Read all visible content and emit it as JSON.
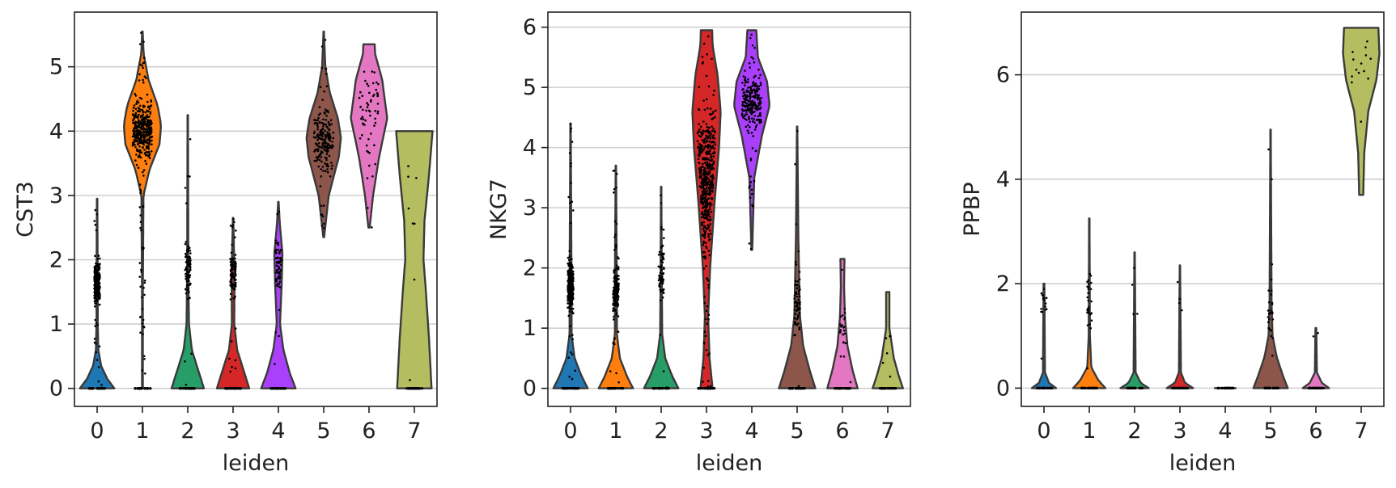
{
  "chart_data": [
    {
      "type": "violin",
      "xlabel": "leiden",
      "ylabel": "CST3",
      "categories": [
        "0",
        "1",
        "2",
        "3",
        "4",
        "5",
        "6",
        "7"
      ],
      "yticks": [
        "0",
        "1",
        "2",
        "3",
        "4",
        "5"
      ],
      "ytick_values": [
        0,
        1,
        2,
        3,
        4,
        5
      ],
      "ylim": [
        -0.28,
        5.85
      ],
      "grid": true,
      "colors": [
        "#1f77b4",
        "#ff7f0e",
        "#279e68",
        "#d62728",
        "#aa40fc",
        "#8c564b",
        "#e377c2",
        "#b5bd61"
      ],
      "violins": [
        {
          "min": 0,
          "max": 2.95,
          "median": 0,
          "points_center": 1.65,
          "points_spread": 0.25,
          "n_points": 260,
          "profile": [
            [
              0,
              0.85
            ],
            [
              0.15,
              0.5
            ],
            [
              0.35,
              0.2
            ],
            [
              0.6,
              0.06
            ],
            [
              1.0,
              0.03
            ],
            [
              1.6,
              0.03
            ],
            [
              2.95,
              0.01
            ]
          ]
        },
        {
          "min": 0,
          "max": 5.55,
          "median": 4.05,
          "points_center": 4.0,
          "points_spread": 0.35,
          "n_points": 420,
          "profile": [
            [
              0,
              0.02
            ],
            [
              1.5,
              0.02
            ],
            [
              3.0,
              0.05
            ],
            [
              3.4,
              0.35
            ],
            [
              3.8,
              0.85
            ],
            [
              4.1,
              0.92
            ],
            [
              4.4,
              0.75
            ],
            [
              4.8,
              0.3
            ],
            [
              5.2,
              0.06
            ],
            [
              5.55,
              0.01
            ]
          ]
        },
        {
          "min": 0,
          "max": 4.25,
          "median": 0,
          "points_center": 1.85,
          "points_spread": 0.35,
          "n_points": 90,
          "profile": [
            [
              0,
              0.8
            ],
            [
              0.25,
              0.55
            ],
            [
              0.6,
              0.2
            ],
            [
              1.0,
              0.06
            ],
            [
              1.8,
              0.03
            ],
            [
              4.25,
              0.01
            ]
          ]
        },
        {
          "min": 0,
          "max": 2.65,
          "median": 0,
          "points_center": 1.75,
          "points_spread": 0.25,
          "n_points": 110,
          "profile": [
            [
              0,
              0.8
            ],
            [
              0.25,
              0.55
            ],
            [
              0.6,
              0.2
            ],
            [
              1.0,
              0.06
            ],
            [
              1.8,
              0.07
            ],
            [
              2.65,
              0.01
            ]
          ]
        },
        {
          "min": 0,
          "max": 2.9,
          "median": 0,
          "points_center": 1.9,
          "points_spread": 0.3,
          "n_points": 70,
          "profile": [
            [
              0,
              0.85
            ],
            [
              0.25,
              0.55
            ],
            [
              0.6,
              0.25
            ],
            [
              1.0,
              0.08
            ],
            [
              1.6,
              0.16
            ],
            [
              2.1,
              0.2
            ],
            [
              2.6,
              0.06
            ],
            [
              2.9,
              0.01
            ]
          ]
        },
        {
          "min": 2.35,
          "max": 5.55,
          "median": 3.9,
          "points_center": 3.85,
          "points_spread": 0.4,
          "n_points": 200,
          "profile": [
            [
              2.35,
              0.02
            ],
            [
              3.0,
              0.25
            ],
            [
              3.6,
              0.75
            ],
            [
              3.9,
              0.85
            ],
            [
              4.2,
              0.7
            ],
            [
              4.6,
              0.3
            ],
            [
              5.0,
              0.08
            ],
            [
              5.55,
              0.01
            ]
          ]
        },
        {
          "min": 2.5,
          "max": 5.35,
          "median": 4.25,
          "points_center": 4.3,
          "points_spread": 0.5,
          "n_points": 60,
          "profile": [
            [
              2.5,
              0.03
            ],
            [
              3.0,
              0.2
            ],
            [
              3.6,
              0.5
            ],
            [
              4.2,
              0.9
            ],
            [
              4.8,
              0.65
            ],
            [
              5.2,
              0.3
            ],
            [
              5.35,
              0.28
            ]
          ]
        },
        {
          "min": 0,
          "max": 4.0,
          "median": 0,
          "points_center": 2.8,
          "points_spread": 1.0,
          "n_points": 8,
          "profile": [
            [
              0,
              0.85
            ],
            [
              0.8,
              0.72
            ],
            [
              1.6,
              0.55
            ],
            [
              2.0,
              0.45
            ],
            [
              2.6,
              0.5
            ],
            [
              3.3,
              0.72
            ],
            [
              4.0,
              0.9
            ]
          ]
        }
      ]
    },
    {
      "type": "violin",
      "xlabel": "leiden",
      "ylabel": "NKG7",
      "categories": [
        "0",
        "1",
        "2",
        "3",
        "4",
        "5",
        "6",
        "7"
      ],
      "yticks": [
        "0",
        "1",
        "2",
        "3",
        "4",
        "5",
        "6"
      ],
      "ytick_values": [
        0,
        1,
        2,
        3,
        4,
        5,
        6
      ],
      "ylim": [
        -0.3,
        6.25
      ],
      "grid": true,
      "colors": [
        "#1f77b4",
        "#ff7f0e",
        "#279e68",
        "#d62728",
        "#aa40fc",
        "#8c564b",
        "#e377c2",
        "#b5bd61"
      ],
      "violins": [
        {
          "min": 0,
          "max": 4.4,
          "median": 0,
          "points_center": 1.7,
          "points_spread": 0.3,
          "n_points": 300,
          "profile": [
            [
              0,
              0.85
            ],
            [
              0.2,
              0.55
            ],
            [
              0.5,
              0.2
            ],
            [
              0.9,
              0.05
            ],
            [
              1.6,
              0.05
            ],
            [
              4.4,
              0.01
            ]
          ]
        },
        {
          "min": 0,
          "max": 3.7,
          "median": 0,
          "points_center": 1.6,
          "points_spread": 0.3,
          "n_points": 200,
          "profile": [
            [
              0,
              0.85
            ],
            [
              0.2,
              0.55
            ],
            [
              0.5,
              0.2
            ],
            [
              0.9,
              0.05
            ],
            [
              1.6,
              0.05
            ],
            [
              3.7,
              0.01
            ]
          ]
        },
        {
          "min": 0,
          "max": 3.35,
          "median": 0,
          "points_center": 1.9,
          "points_spread": 0.35,
          "n_points": 70,
          "profile": [
            [
              0,
              0.85
            ],
            [
              0.2,
              0.55
            ],
            [
              0.5,
              0.2
            ],
            [
              0.9,
              0.05
            ],
            [
              1.9,
              0.03
            ],
            [
              3.35,
              0.01
            ]
          ]
        },
        {
          "min": 0,
          "max": 5.95,
          "median": 0,
          "points_center": 3.5,
          "points_spread": 0.9,
          "n_points": 500,
          "profile": [
            [
              0,
              0.3
            ],
            [
              0.5,
              0.15
            ],
            [
              1.2,
              0.08
            ],
            [
              2.0,
              0.18
            ],
            [
              3.0,
              0.38
            ],
            [
              4.0,
              0.62
            ],
            [
              4.6,
              0.7
            ],
            [
              5.2,
              0.55
            ],
            [
              5.7,
              0.3
            ],
            [
              5.95,
              0.28
            ]
          ]
        },
        {
          "min": 2.3,
          "max": 5.95,
          "median": 4.75,
          "points_center": 4.75,
          "points_spread": 0.35,
          "n_points": 250,
          "profile": [
            [
              2.3,
              0.02
            ],
            [
              3.5,
              0.12
            ],
            [
              4.2,
              0.5
            ],
            [
              4.7,
              0.88
            ],
            [
              5.1,
              0.75
            ],
            [
              5.5,
              0.3
            ],
            [
              5.95,
              0.22
            ]
          ]
        },
        {
          "min": 0,
          "max": 4.35,
          "median": 0,
          "points_center": 1.4,
          "points_spread": 0.45,
          "n_points": 70,
          "profile": [
            [
              0,
              0.9
            ],
            [
              0.3,
              0.62
            ],
            [
              0.7,
              0.3
            ],
            [
              1.2,
              0.14
            ],
            [
              1.8,
              0.1
            ],
            [
              2.5,
              0.06
            ],
            [
              4.35,
              0.01
            ]
          ]
        },
        {
          "min": 0,
          "max": 2.15,
          "median": 0,
          "points_center": 1.0,
          "points_spread": 0.3,
          "n_points": 25,
          "profile": [
            [
              0,
              0.75
            ],
            [
              0.3,
              0.5
            ],
            [
              0.7,
              0.25
            ],
            [
              1.2,
              0.12
            ],
            [
              1.7,
              0.08
            ],
            [
              2.15,
              0.1
            ]
          ]
        },
        {
          "min": 0,
          "max": 1.6,
          "median": 0,
          "points_center": 0.6,
          "points_spread": 0.3,
          "n_points": 6,
          "profile": [
            [
              0,
              0.75
            ],
            [
              0.2,
              0.55
            ],
            [
              0.5,
              0.3
            ],
            [
              1.0,
              0.08
            ],
            [
              1.6,
              0.08
            ]
          ]
        }
      ]
    },
    {
      "type": "violin",
      "xlabel": "leiden",
      "ylabel": "PPBP",
      "categories": [
        "0",
        "1",
        "2",
        "3",
        "4",
        "5",
        "6",
        "7"
      ],
      "yticks": [
        "0",
        "2",
        "4",
        "6"
      ],
      "ytick_values": [
        0,
        2,
        4,
        6
      ],
      "ylim": [
        -0.35,
        7.2
      ],
      "grid": true,
      "colors": [
        "#1f77b4",
        "#ff7f0e",
        "#279e68",
        "#d62728",
        "#aa40fc",
        "#8c564b",
        "#e377c2",
        "#b5bd61"
      ],
      "violins": [
        {
          "min": 0,
          "max": 2.0,
          "median": 0,
          "points_center": 1.6,
          "points_spread": 0.25,
          "n_points": 18,
          "profile": [
            [
              0,
              0.6
            ],
            [
              0.1,
              0.25
            ],
            [
              0.3,
              0.05
            ],
            [
              2.0,
              0.02
            ]
          ]
        },
        {
          "min": 0,
          "max": 3.25,
          "median": 0,
          "points_center": 1.65,
          "points_spread": 0.45,
          "n_points": 30,
          "profile": [
            [
              0,
              0.8
            ],
            [
              0.15,
              0.45
            ],
            [
              0.4,
              0.1
            ],
            [
              1.0,
              0.03
            ],
            [
              3.25,
              0.01
            ]
          ]
        },
        {
          "min": 0,
          "max": 2.6,
          "median": 0,
          "points_center": 1.8,
          "points_spread": 0.5,
          "n_points": 4,
          "profile": [
            [
              0,
              0.7
            ],
            [
              0.1,
              0.3
            ],
            [
              0.3,
              0.05
            ],
            [
              2.6,
              0.01
            ]
          ]
        },
        {
          "min": 0,
          "max": 2.35,
          "median": 0,
          "points_center": 1.6,
          "points_spread": 0.5,
          "n_points": 4,
          "profile": [
            [
              0,
              0.65
            ],
            [
              0.1,
              0.25
            ],
            [
              0.3,
              0.05
            ],
            [
              2.35,
              0.01
            ]
          ]
        },
        {
          "min": 0,
          "max": 0,
          "median": 0,
          "points_center": 0,
          "points_spread": 0,
          "n_points": 0,
          "profile": [
            [
              0,
              0.55
            ]
          ]
        },
        {
          "min": 0,
          "max": 4.95,
          "median": 0,
          "points_center": 1.4,
          "points_spread": 0.6,
          "n_points": 28,
          "profile": [
            [
              0,
              0.85
            ],
            [
              0.25,
              0.6
            ],
            [
              0.6,
              0.3
            ],
            [
              1.0,
              0.1
            ],
            [
              1.6,
              0.05
            ],
            [
              4.95,
              0.01
            ]
          ]
        },
        {
          "min": 0,
          "max": 1.15,
          "median": 0,
          "points_center": 0.9,
          "points_spread": 0.2,
          "n_points": 2,
          "profile": [
            [
              0,
              0.65
            ],
            [
              0.1,
              0.3
            ],
            [
              0.3,
              0.05
            ],
            [
              1.15,
              0.02
            ]
          ]
        },
        {
          "min": 3.7,
          "max": 6.9,
          "median": 6.1,
          "points_center": 6.15,
          "points_spread": 0.45,
          "n_points": 14,
          "profile": [
            [
              3.7,
              0.1
            ],
            [
              4.5,
              0.15
            ],
            [
              5.3,
              0.35
            ],
            [
              5.9,
              0.75
            ],
            [
              6.4,
              0.9
            ],
            [
              6.9,
              0.85
            ]
          ]
        }
      ]
    }
  ]
}
